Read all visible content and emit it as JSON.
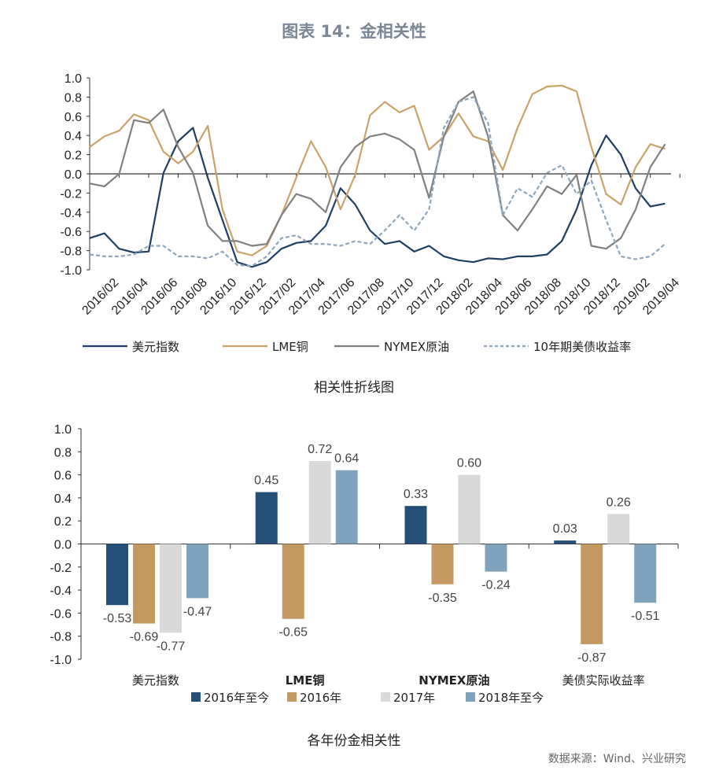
{
  "title": "图表 14：金相关性",
  "source": "数据来源：Wind、兴业研究",
  "colors": {
    "usd": "#1f3f63",
    "lme": "#c9a36a",
    "oil": "#808080",
    "ust": "#8ea6bd",
    "bar_2016_now": "#244f78",
    "bar_2016": "#c49a62",
    "bar_2017": "#d9d9d9",
    "bar_2018_now": "#7fa2bd"
  },
  "chart_data": [
    {
      "type": "line",
      "title": "相关性折线图",
      "ylim": [
        -1.0,
        1.0
      ],
      "yticks": [
        "1.0",
        "0.8",
        "0.6",
        "0.4",
        "0.2",
        "0.0",
        "-0.2",
        "-0.4",
        "-0.6",
        "-0.8",
        "-1.0"
      ],
      "xtick_labels": [
        "2016/02",
        "2016/04",
        "2016/06",
        "2016/08",
        "2016/10",
        "2016/12",
        "2017/02",
        "2017/04",
        "2017/06",
        "2017/08",
        "2017/10",
        "2017/12",
        "2018/02",
        "2018/04",
        "2018/06",
        "2018/08",
        "2018/10",
        "2018/12",
        "2019/02",
        "2019/04"
      ],
      "x": [
        "2015/12",
        "2016/01",
        "2016/02",
        "2016/03",
        "2016/04",
        "2016/05",
        "2016/06",
        "2016/07",
        "2016/08",
        "2016/09",
        "2016/10",
        "2016/11",
        "2016/12",
        "2017/01",
        "2017/02",
        "2017/03",
        "2017/04",
        "2017/05",
        "2017/06",
        "2017/07",
        "2017/08",
        "2017/09",
        "2017/10",
        "2017/11",
        "2017/12",
        "2018/01",
        "2018/02",
        "2018/03",
        "2018/04",
        "2018/05",
        "2018/06",
        "2018/07",
        "2018/08",
        "2018/09",
        "2018/10",
        "2018/11",
        "2018/12",
        "2019/01",
        "2019/02",
        "2019/03"
      ],
      "legend_position": "bottom",
      "series": [
        {
          "name": "美元指数",
          "style": "solid",
          "values": [
            -0.67,
            -0.62,
            -0.78,
            -0.82,
            -0.81,
            0.01,
            0.34,
            0.48,
            -0.04,
            -0.48,
            -0.92,
            -0.97,
            -0.92,
            -0.78,
            -0.72,
            -0.7,
            -0.54,
            -0.15,
            -0.32,
            -0.59,
            -0.73,
            -0.7,
            -0.81,
            -0.75,
            -0.86,
            -0.9,
            -0.92,
            -0.88,
            -0.89,
            -0.86,
            -0.86,
            -0.84,
            -0.7,
            -0.37,
            0.09,
            0.4,
            0.2,
            -0.15,
            -0.34,
            -0.31
          ]
        },
        {
          "name": "LME铜",
          "style": "solid",
          "values": [
            0.28,
            0.39,
            0.45,
            0.62,
            0.56,
            0.23,
            0.11,
            0.23,
            0.5,
            -0.37,
            -0.81,
            -0.85,
            -0.75,
            -0.43,
            -0.04,
            0.34,
            0.07,
            -0.37,
            -0.01,
            0.61,
            0.75,
            0.64,
            0.71,
            0.25,
            0.39,
            0.63,
            0.39,
            0.34,
            0.04,
            0.48,
            0.83,
            0.91,
            0.92,
            0.86,
            0.28,
            -0.21,
            -0.32,
            0.07,
            0.31,
            0.26
          ]
        },
        {
          "name": "NYMEX原油",
          "style": "solid",
          "values": [
            -0.1,
            -0.13,
            0.0,
            0.56,
            0.53,
            0.67,
            0.28,
            0.01,
            -0.54,
            -0.7,
            -0.7,
            -0.75,
            -0.73,
            -0.43,
            -0.21,
            -0.26,
            -0.4,
            0.07,
            0.28,
            0.39,
            0.42,
            0.36,
            0.25,
            -0.25,
            0.39,
            0.75,
            0.86,
            0.39,
            -0.43,
            -0.59,
            -0.37,
            -0.13,
            -0.21,
            -0.01,
            -0.75,
            -0.78,
            -0.67,
            -0.37,
            0.07,
            0.31
          ]
        },
        {
          "name": "10年期美债收益率",
          "style": "dashed",
          "values": [
            -0.84,
            -0.86,
            -0.86,
            -0.84,
            -0.75,
            -0.75,
            -0.86,
            -0.86,
            -0.88,
            -0.81,
            -0.95,
            -0.96,
            -0.86,
            -0.67,
            -0.64,
            -0.73,
            -0.73,
            -0.75,
            -0.7,
            -0.73,
            -0.59,
            -0.43,
            -0.59,
            -0.37,
            0.48,
            0.75,
            0.8,
            0.53,
            -0.43,
            -0.15,
            -0.24,
            0.01,
            0.09,
            -0.21,
            -0.07,
            -0.48,
            -0.86,
            -0.89,
            -0.86,
            -0.73
          ]
        }
      ]
    },
    {
      "type": "bar",
      "title": "各年份金相关性",
      "ylim": [
        -1.0,
        1.0
      ],
      "yticks": [
        "1.0",
        "0.8",
        "0.6",
        "0.4",
        "0.2",
        "0.0",
        "-0.2",
        "-0.4",
        "-0.6",
        "-0.8",
        "-1.0"
      ],
      "categories": [
        "美元指数",
        "LME铜",
        "NYMEX原油",
        "美债实际收益率"
      ],
      "legend_position": "bottom",
      "series": [
        {
          "name": "2016年至今",
          "values": [
            -0.53,
            0.45,
            0.33,
            0.03
          ],
          "labels": [
            "-0.53",
            "0.45",
            "0.33",
            "0.03"
          ]
        },
        {
          "name": "2016年",
          "values": [
            -0.69,
            -0.65,
            -0.35,
            -0.87
          ],
          "labels": [
            "-0.69",
            "-0.65",
            "-0.35",
            "-0.87"
          ]
        },
        {
          "name": "2017年",
          "values": [
            -0.77,
            0.72,
            0.6,
            0.26
          ],
          "labels": [
            "-0.77",
            "0.72",
            "0.60",
            "0.26"
          ]
        },
        {
          "name": "2018年至今",
          "values": [
            -0.47,
            0.64,
            -0.24,
            -0.51
          ],
          "labels": [
            "-0.47",
            "0.64",
            "-0.24",
            "-0.51"
          ]
        }
      ]
    }
  ]
}
